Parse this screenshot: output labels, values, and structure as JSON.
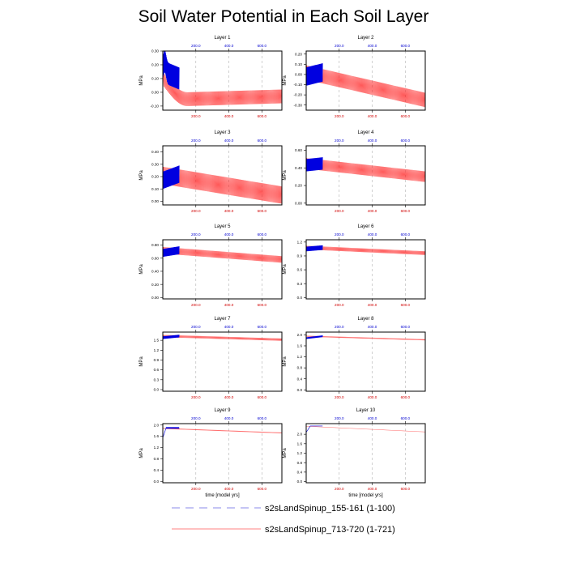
{
  "title": "Soil Water Potential in Each Soil Layer",
  "chart_data": {
    "type": "line",
    "grid": "vertical dashed lines at x = 200, 400, 600",
    "bottom_axis": {
      "color": "#d00000",
      "ticks": [
        "200.0",
        "400.0",
        "600.0"
      ]
    },
    "top_axis": {
      "color": "#0000d0",
      "ticks": [
        "200.0",
        "400.0",
        "600.0"
      ]
    },
    "xlim": [
      0,
      721
    ],
    "xlabel": "time [model yrs]",
    "ylabel": "MPa",
    "series": [
      {
        "name": "s2sLandSpinup_155-161 (1-100)",
        "color": "#0000e0",
        "style": "dashed",
        "x_range": [
          1,
          100
        ]
      },
      {
        "name": "s2sLandSpinup_713-720 (1-721)",
        "color": "#ff2020",
        "style": "solid",
        "x_range": [
          1,
          721
        ]
      }
    ],
    "panels": [
      {
        "title": "Layer 1",
        "ylim": [
          -0.13,
          0.3
        ],
        "yticks": [
          "-0.10",
          "0.00",
          "0.10",
          "0.20",
          "0.30"
        ],
        "blue": {
          "start": 0.15,
          "end": 0.1,
          "peak": 0.23,
          "amp": 0.08
        },
        "red": {
          "start": 0.1,
          "min_x": 150,
          "min": -0.05,
          "end": -0.03,
          "amp": 0.05
        }
      },
      {
        "title": "Layer 2",
        "ylim": [
          -0.35,
          0.23
        ],
        "yticks": [
          "-0.30",
          "-0.20",
          "-0.10",
          "0.00",
          "0.10",
          "0.20"
        ],
        "blue": {
          "start": -0.02,
          "end": 0.02,
          "amp": 0.09
        },
        "red": {
          "start": 0.02,
          "end": -0.25,
          "amp": 0.07
        }
      },
      {
        "title": "Layer 3",
        "ylim": [
          -0.03,
          0.45
        ],
        "yticks": [
          "0.00",
          "0.10",
          "0.20",
          "0.30",
          "0.40"
        ],
        "blue": {
          "start": 0.17,
          "end": 0.22,
          "amp": 0.07
        },
        "red": {
          "start": 0.21,
          "end": 0.05,
          "amp": 0.07
        }
      },
      {
        "title": "Layer 4",
        "ylim": [
          -0.02,
          0.65
        ],
        "yticks": [
          "0.00",
          "0.20",
          "0.40",
          "0.60"
        ],
        "blue": {
          "start": 0.43,
          "end": 0.45,
          "amp": 0.07
        },
        "red": {
          "start": 0.45,
          "end": 0.3,
          "amp": 0.06
        }
      },
      {
        "title": "Layer 5",
        "ylim": [
          -0.02,
          0.88
        ],
        "yticks": [
          "0.00",
          "0.20",
          "0.40",
          "0.60",
          "0.80"
        ],
        "blue": {
          "start": 0.68,
          "end": 0.72,
          "amp": 0.06
        },
        "red": {
          "start": 0.72,
          "end": 0.58,
          "amp": 0.05
        }
      },
      {
        "title": "Layer 6",
        "ylim": [
          -0.03,
          1.25
        ],
        "yticks": [
          "0.0",
          "0.3",
          "0.6",
          "0.9",
          "1.2"
        ],
        "blue": {
          "start": 1.05,
          "end": 1.08,
          "amp": 0.05
        },
        "red": {
          "start": 1.08,
          "end": 0.96,
          "amp": 0.04
        }
      },
      {
        "title": "Layer 7",
        "ylim": [
          -0.05,
          1.75
        ],
        "yticks": [
          "0.0",
          "0.3",
          "0.6",
          "0.9",
          "1.2",
          "1.5"
        ],
        "blue": {
          "start": 1.58,
          "end": 1.63,
          "amp": 0.04
        },
        "red": {
          "start": 1.63,
          "end": 1.52,
          "amp": 0.035
        }
      },
      {
        "title": "Layer 8",
        "ylim": [
          -0.05,
          2.1
        ],
        "yticks": [
          "0.0",
          "0.4",
          "0.8",
          "1.2",
          "1.6",
          "2.0"
        ],
        "blue": {
          "start": 1.88,
          "end": 1.95,
          "amp": 0.03
        },
        "red": {
          "start": 1.95,
          "end": 1.82,
          "amp": 0.02
        }
      },
      {
        "title": "Layer 9",
        "ylim": [
          -0.05,
          2.05
        ],
        "yticks": [
          "0.0",
          "0.4",
          "0.8",
          "1.2",
          "1.6",
          "2.0"
        ],
        "blue": {
          "start": 1.55,
          "end": 1.9,
          "amp": 0.01
        },
        "red": {
          "start": 1.88,
          "end": 1.72,
          "amp": 0.015
        }
      },
      {
        "title": "Layer 10",
        "ylim": [
          -0.05,
          2.45
        ],
        "yticks": [
          "0.0",
          "0.4",
          "0.8",
          "1.2",
          "1.6",
          "2.0"
        ],
        "blue": {
          "start": 2.08,
          "end": 2.35,
          "amp": 0.0
        },
        "red": {
          "start": 2.34,
          "end": 2.1,
          "amp": 0.0
        }
      }
    ]
  }
}
